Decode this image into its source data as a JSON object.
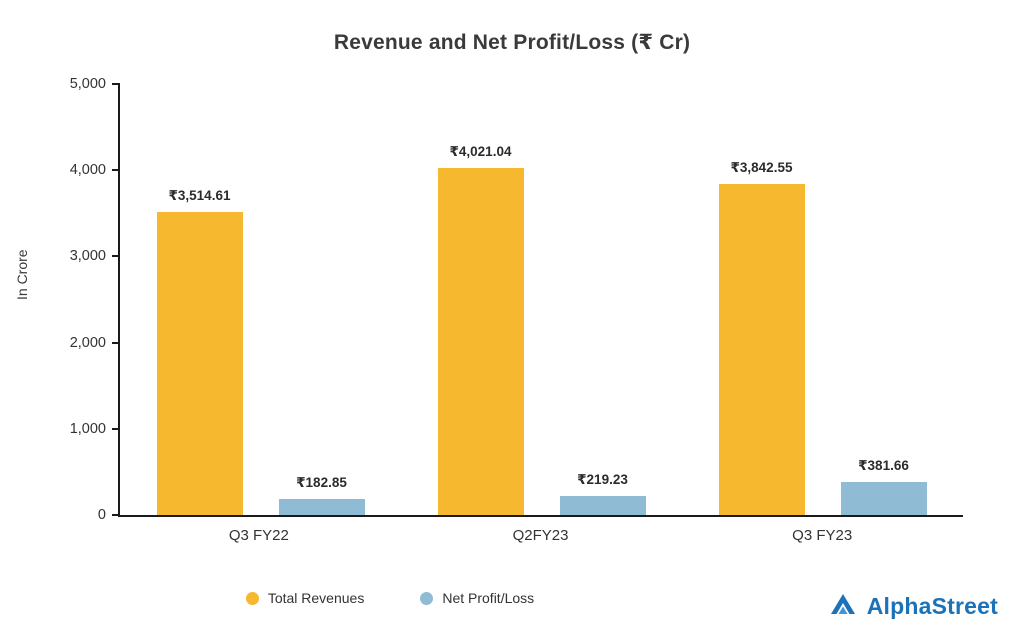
{
  "title": "Revenue and Net Profit/Loss (₹ Cr)",
  "chart_data": {
    "type": "bar",
    "categories": [
      "Q3 FY22",
      "Q2FY23",
      "Q3 FY23"
    ],
    "series": [
      {
        "name": "Total Revenues",
        "color": "#F5B82E",
        "values": [
          3514.61,
          4021.04,
          3842.55
        ],
        "labels": [
          "₹3,514.61",
          "₹4,021.04",
          "₹3,842.55"
        ]
      },
      {
        "name": "Net Profit/Loss",
        "color": "#8FBCD4",
        "values": [
          182.85,
          219.23,
          381.66
        ],
        "labels": [
          "₹182.85",
          "₹219.23",
          "₹381.66"
        ]
      }
    ],
    "ylabel": "In Crore",
    "ylim": [
      0,
      5000
    ],
    "yticks": [
      0,
      1000,
      2000,
      3000,
      4000,
      5000
    ],
    "ytick_labels": [
      "0",
      "1,000",
      "2,000",
      "3,000",
      "4,000",
      "5,000"
    ],
    "grid": false,
    "legend_position": "bottom"
  },
  "legend": {
    "items": [
      {
        "label": "Total Revenues",
        "color": "#F5B82E"
      },
      {
        "label": "Net Profit/Loss",
        "color": "#8FBCD4"
      }
    ]
  },
  "branding": {
    "logo_text": "AlphaStreet",
    "logo_color": "#1b72b8"
  }
}
